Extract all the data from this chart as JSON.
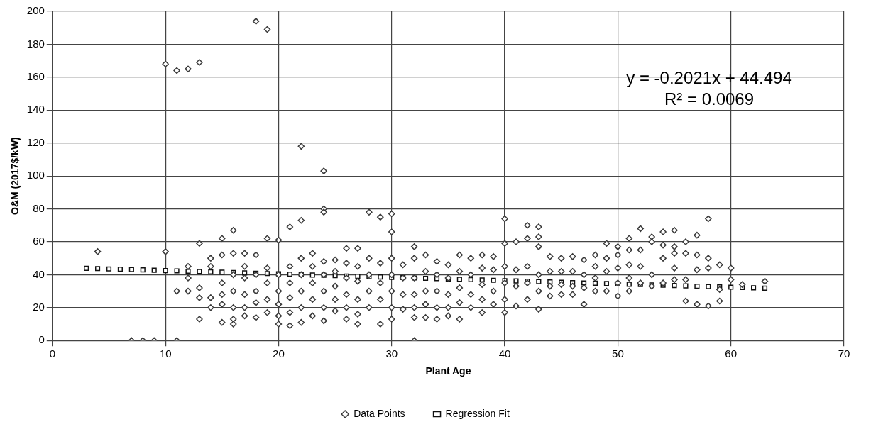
{
  "chart_data": {
    "type": "scatter",
    "xlabel": "Plant Age",
    "ylabel": "O&M (2017$/kW)",
    "xlim": [
      0,
      70
    ],
    "xticks": [
      0,
      10,
      20,
      30,
      40,
      50,
      60,
      70
    ],
    "ylim": [
      0,
      200
    ],
    "yticks": [
      0,
      20,
      40,
      60,
      80,
      100,
      120,
      140,
      160,
      180,
      200
    ],
    "grid": true,
    "legend": "bottom",
    "annotations": [
      "y = -0.2021x + 44.494",
      "R² = 0.0069"
    ],
    "series": [
      {
        "name": "Data Points",
        "color": "#3a3a3a",
        "marker": "diamond",
        "x": [
          4,
          7,
          8,
          9,
          10,
          10,
          11,
          11,
          11,
          12,
          12,
          12,
          12,
          13,
          13,
          13,
          13,
          13,
          14,
          14,
          14,
          14,
          15,
          15,
          15,
          15,
          15,
          15,
          16,
          16,
          16,
          16,
          16,
          16,
          16,
          17,
          17,
          17,
          17,
          17,
          17,
          18,
          18,
          18,
          18,
          18,
          18,
          19,
          19,
          19,
          19,
          19,
          19,
          20,
          20,
          20,
          20,
          20,
          20,
          21,
          21,
          21,
          21,
          21,
          21,
          22,
          22,
          22,
          22,
          22,
          22,
          22,
          23,
          23,
          23,
          23,
          23,
          24,
          24,
          24,
          24,
          24,
          24,
          24,
          24,
          25,
          25,
          25,
          25,
          25,
          26,
          26,
          26,
          26,
          26,
          26,
          27,
          27,
          27,
          27,
          27,
          27,
          28,
          28,
          28,
          28,
          28,
          29,
          29,
          29,
          29,
          29,
          30,
          30,
          30,
          30,
          30,
          30,
          30,
          31,
          31,
          31,
          31,
          32,
          32,
          32,
          32,
          32,
          32,
          32,
          33,
          33,
          33,
          33,
          33,
          34,
          34,
          34,
          34,
          34,
          35,
          35,
          35,
          35,
          35,
          36,
          36,
          36,
          36,
          36,
          37,
          37,
          37,
          37,
          38,
          38,
          38,
          38,
          38,
          39,
          39,
          39,
          39,
          40,
          40,
          40,
          40,
          40,
          40,
          41,
          41,
          41,
          41,
          42,
          42,
          42,
          42,
          42,
          43,
          43,
          43,
          43,
          43,
          43,
          44,
          44,
          44,
          44,
          45,
          45,
          45,
          45,
          46,
          46,
          46,
          46,
          47,
          47,
          47,
          47,
          48,
          48,
          48,
          48,
          49,
          49,
          49,
          49,
          50,
          50,
          50,
          50,
          50,
          51,
          51,
          51,
          51,
          51,
          52,
          52,
          52,
          52,
          53,
          53,
          53,
          53,
          54,
          54,
          54,
          54,
          55,
          55,
          55,
          55,
          55,
          56,
          56,
          56,
          56,
          57,
          57,
          57,
          57,
          58,
          58,
          58,
          58,
          59,
          59,
          59,
          60,
          60,
          61,
          63
        ],
        "values": [
          54,
          0,
          0,
          0,
          168,
          54,
          164,
          30,
          0,
          165,
          45,
          38,
          30,
          169,
          59,
          32,
          26,
          13,
          50,
          45,
          26,
          20,
          62,
          52,
          35,
          28,
          22,
          11,
          67,
          53,
          40,
          30,
          20,
          13,
          10,
          53,
          45,
          38,
          28,
          20,
          15,
          194,
          52,
          40,
          30,
          23,
          14,
          189,
          62,
          44,
          35,
          25,
          17,
          61,
          40,
          30,
          22,
          15,
          10,
          69,
          45,
          35,
          26,
          17,
          9,
          118,
          73,
          50,
          40,
          30,
          20,
          11,
          53,
          45,
          35,
          25,
          15,
          103,
          80,
          78,
          48,
          40,
          30,
          20,
          12,
          49,
          42,
          33,
          25,
          18,
          56,
          47,
          38,
          28,
          20,
          13,
          56,
          45,
          36,
          25,
          16,
          10,
          78,
          50,
          40,
          30,
          20,
          75,
          47,
          35,
          25,
          10,
          77,
          66,
          50,
          40,
          30,
          20,
          13,
          46,
          38,
          28,
          19,
          57,
          50,
          38,
          28,
          20,
          14,
          0,
          52,
          42,
          30,
          22,
          14,
          48,
          40,
          30,
          20,
          13,
          46,
          38,
          28,
          20,
          15,
          52,
          42,
          32,
          23,
          13,
          50,
          40,
          28,
          20,
          52,
          44,
          34,
          25,
          17,
          51,
          43,
          30,
          22,
          74,
          59,
          45,
          35,
          25,
          17,
          60,
          43,
          33,
          21,
          70,
          62,
          45,
          35,
          25,
          69,
          63,
          57,
          40,
          30,
          19,
          51,
          42,
          33,
          27,
          50,
          42,
          34,
          28,
          51,
          42,
          33,
          28,
          49,
          40,
          32,
          22,
          52,
          45,
          38,
          30,
          59,
          50,
          42,
          30,
          57,
          52,
          44,
          35,
          27,
          62,
          55,
          46,
          38,
          30,
          68,
          55,
          45,
          35,
          63,
          60,
          40,
          33,
          66,
          58,
          50,
          35,
          67,
          57,
          53,
          44,
          37,
          60,
          53,
          37,
          24,
          64,
          52,
          43,
          22,
          74,
          50,
          44,
          21,
          46,
          31,
          24,
          44,
          37,
          34,
          36
        ]
      },
      {
        "name": "Regression Fit",
        "color": "#111111",
        "marker": "square",
        "x": [
          3,
          4,
          5,
          6,
          7,
          8,
          9,
          10,
          11,
          12,
          13,
          14,
          15,
          16,
          17,
          18,
          19,
          20,
          21,
          22,
          23,
          24,
          25,
          26,
          27,
          28,
          29,
          30,
          31,
          32,
          33,
          34,
          35,
          36,
          37,
          38,
          39,
          40,
          41,
          42,
          43,
          44,
          45,
          46,
          47,
          48,
          49,
          50,
          51,
          52,
          53,
          54,
          55,
          56,
          57,
          58,
          59,
          60,
          61,
          62,
          63
        ],
        "values": [
          43.9,
          43.7,
          43.5,
          43.3,
          43.1,
          42.9,
          42.7,
          42.5,
          42.3,
          42.1,
          41.9,
          41.7,
          41.5,
          41.3,
          41.1,
          40.9,
          40.7,
          40.5,
          40.3,
          40.0,
          39.8,
          39.6,
          39.4,
          39.2,
          39.0,
          38.8,
          38.6,
          38.4,
          38.2,
          38.0,
          37.8,
          37.6,
          37.4,
          37.2,
          37.0,
          36.8,
          36.6,
          36.4,
          36.2,
          36.0,
          35.8,
          35.6,
          35.4,
          35.2,
          35.0,
          34.8,
          34.6,
          34.4,
          34.2,
          34.0,
          33.8,
          33.6,
          33.4,
          33.2,
          33.0,
          32.8,
          32.6,
          32.4,
          32.2,
          32.0,
          31.8
        ]
      }
    ]
  }
}
